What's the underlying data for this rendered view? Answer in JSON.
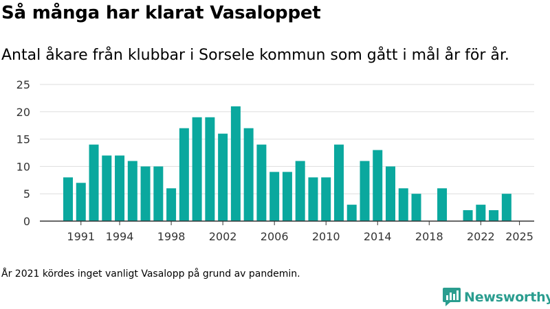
{
  "header": {
    "title": "Så många har klarat Vasaloppet",
    "subtitle": "Antal åkare från klubbar i Sorsele kommun som gått i mål år för år."
  },
  "footer": {
    "note": "År 2021 kördes inget vanligt Vasalopp på grund av pandemin.",
    "brand": "Newsworthy"
  },
  "colors": {
    "bar": "#0aa89e",
    "grid": "#dddddd",
    "axis": "#333333",
    "brand": "#2a9d8f"
  },
  "chart_data": {
    "type": "bar",
    "title": "Så många har klarat Vasaloppet",
    "xlabel": "",
    "ylabel": "",
    "ylim": [
      0,
      25
    ],
    "yticks": [
      0,
      5,
      10,
      15,
      20,
      25
    ],
    "xticks": [
      1991,
      1994,
      1998,
      2002,
      2006,
      2010,
      2014,
      2018,
      2022,
      2025
    ],
    "categories": [
      1990,
      1991,
      1992,
      1993,
      1994,
      1995,
      1996,
      1997,
      1998,
      1999,
      2000,
      2001,
      2002,
      2003,
      2004,
      2005,
      2006,
      2007,
      2008,
      2009,
      2010,
      2011,
      2012,
      2013,
      2014,
      2015,
      2016,
      2017,
      2018,
      2019,
      2020,
      2021,
      2022,
      2023,
      2024,
      2025
    ],
    "values": [
      8,
      7,
      14,
      12,
      12,
      11,
      10,
      10,
      6,
      17,
      19,
      19,
      16,
      21,
      17,
      14,
      9,
      9,
      11,
      8,
      8,
      14,
      3,
      11,
      13,
      10,
      6,
      5,
      0,
      6,
      0,
      2,
      3,
      2,
      5,
      0
    ],
    "grid": true,
    "legend": "none"
  }
}
